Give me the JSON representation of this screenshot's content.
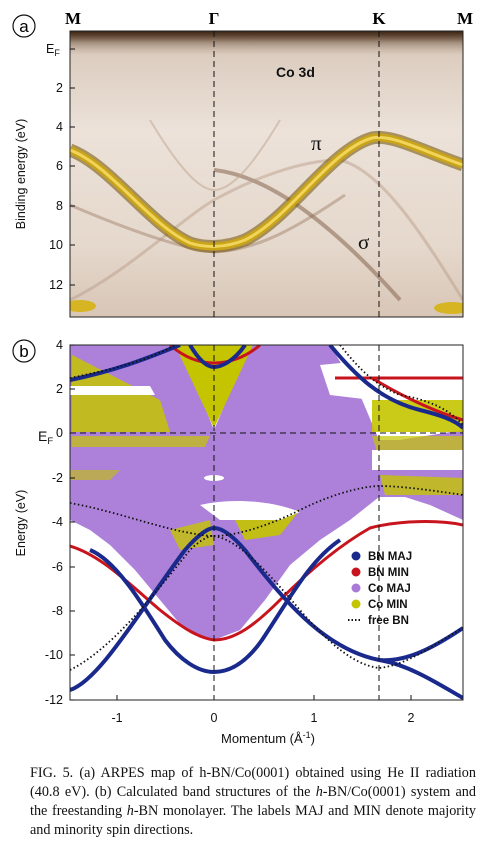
{
  "panel_a": {
    "label": "a",
    "top_labels": [
      "M",
      "Γ",
      "K",
      "M"
    ],
    "ylabel": "Binding energy (eV)",
    "y_ticks": [
      "E",
      "2",
      "4",
      "6",
      "8",
      "10",
      "12"
    ],
    "ef_sub": "F",
    "annotations": {
      "co3d": "Co 3d",
      "pi": "π",
      "sigma": "σ"
    }
  },
  "panel_b": {
    "label": "b",
    "ylabel": "Energy (eV)",
    "xlabel": "Momentum (Å",
    "xlabel_sup": "-1",
    "xlabel_close": ")",
    "ef_label": "E",
    "ef_sub": "F",
    "y_ticks": [
      "4",
      "2",
      "0",
      "-2",
      "-4",
      "-6",
      "-8",
      "-10",
      "-12"
    ],
    "x_ticks": [
      "-1",
      "0",
      "1",
      "2"
    ],
    "legend": [
      {
        "label": "BN MAJ",
        "color": "#1a2a8c"
      },
      {
        "label": "BN MIN",
        "color": "#c8141c"
      },
      {
        "label": "Co MAJ",
        "color": "#a97ad8"
      },
      {
        "label": "Co MIN",
        "color": "#c4c400"
      },
      {
        "label": "free BN",
        "color": "#111111"
      }
    ]
  },
  "caption": {
    "p1": "FIG. 5.  (a) ARPES map of h-BN/Co(0001) obtained using He II radiation (40.8 eV). (b) Calculated band structures of the ",
    "h1": "h",
    "p2": "-BN/Co(0001) system and the freestanding ",
    "h2": "h",
    "p3": "-BN monolayer. The labels MAJ and MIN denote majority and minority spin directions."
  }
}
